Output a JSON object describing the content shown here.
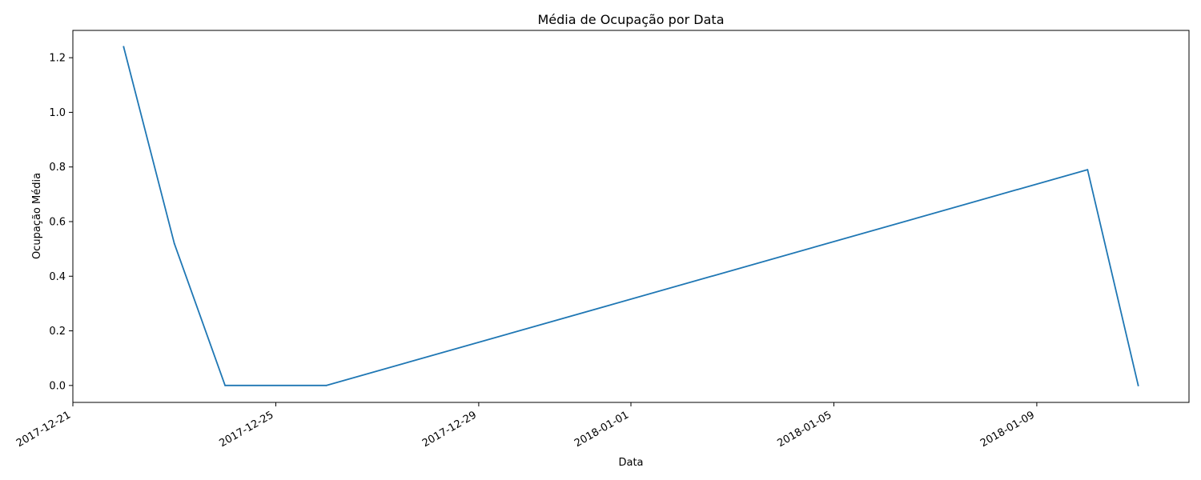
{
  "chart_data": {
    "type": "line",
    "title": "Média de Ocupação por Data",
    "xlabel": "Data",
    "ylabel": "Ocupação Média",
    "x_scale": "date",
    "xlim": [
      "2017-12-21",
      "2018-01-12"
    ],
    "ylim": [
      -0.062,
      1.3
    ],
    "x_ticks": [
      "2017-12-21",
      "2017-12-25",
      "2017-12-29",
      "2018-01-01",
      "2018-01-05",
      "2018-01-09"
    ],
    "y_ticks": [
      "0.0",
      "0.2",
      "0.4",
      "0.6",
      "0.8",
      "1.0",
      "1.2"
    ],
    "grid": false,
    "series": [
      {
        "color": "#1f77b4",
        "points": [
          {
            "x": "2017-12-22",
            "y": 1.24
          },
          {
            "x": "2017-12-23",
            "y": 0.52
          },
          {
            "x": "2017-12-24",
            "y": 0.0
          },
          {
            "x": "2017-12-26",
            "y": 0.0
          },
          {
            "x": "2018-01-10",
            "y": 0.79
          },
          {
            "x": "2018-01-11",
            "y": 0.0
          }
        ]
      }
    ]
  }
}
